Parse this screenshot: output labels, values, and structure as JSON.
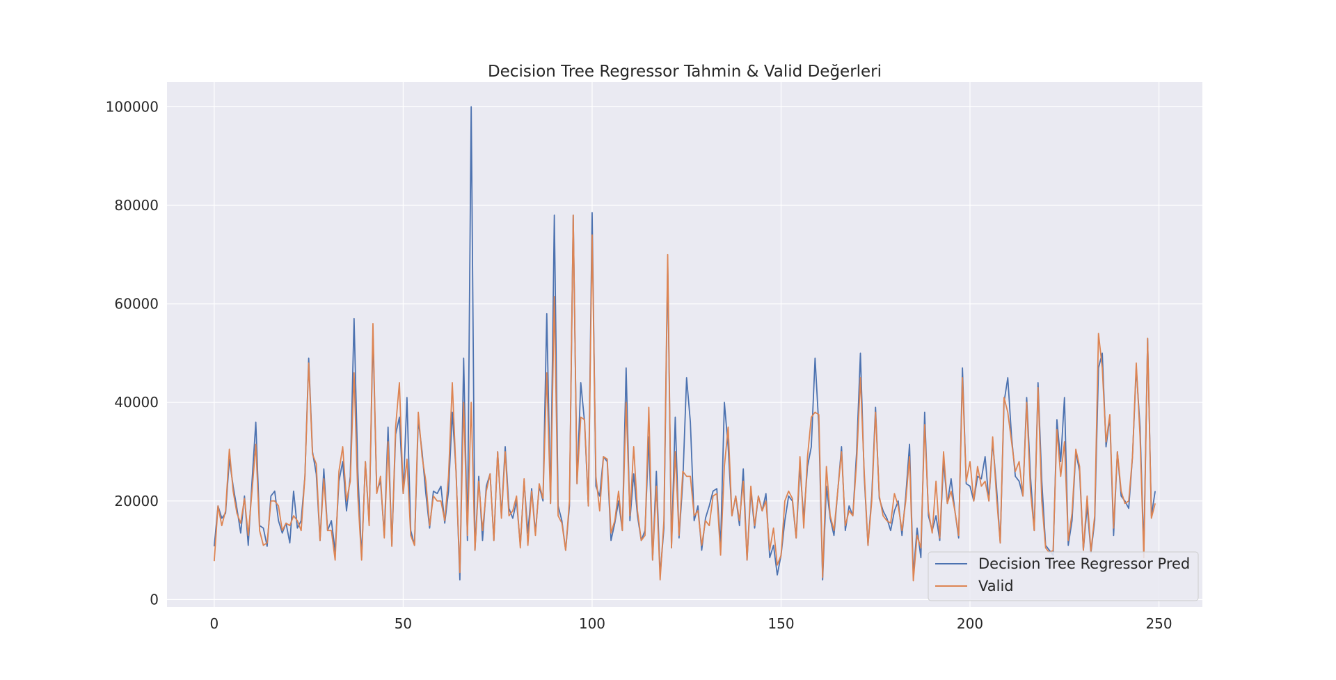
{
  "chart_data": {
    "type": "line",
    "title": "Decision Tree Regressor Tahmin & Valid Değerleri",
    "xlabel": "",
    "ylabel": "",
    "xlim": [
      -12.5,
      261.5
    ],
    "ylim": [
      -1500,
      105000
    ],
    "xticks": [
      0,
      50,
      100,
      150,
      200,
      250
    ],
    "yticks": [
      0,
      20000,
      40000,
      60000,
      80000,
      100000
    ],
    "grid": true,
    "legend_position": "lower right",
    "colors": {
      "background": "#eaeaf2",
      "grid": "#ffffff",
      "pred": "#4c72b0",
      "valid": "#dd8452"
    },
    "series": [
      {
        "name": "Decision Tree Regressor Pred",
        "values": [
          10800,
          19000,
          16500,
          17500,
          28500,
          23000,
          18500,
          13500,
          21000,
          11000,
          24000,
          36000,
          15000,
          14500,
          10800,
          21000,
          22000,
          16000,
          13500,
          15500,
          11500,
          22000,
          14500,
          16000,
          25000,
          49000,
          30000,
          25500,
          12000,
          26500,
          14000,
          16000,
          9800,
          24000,
          28000,
          18000,
          25000,
          57000,
          26000,
          8500,
          28000,
          15500,
          54000,
          22000,
          24000,
          13000,
          35000,
          11000,
          33500,
          37000,
          21500,
          41000,
          14000,
          11000,
          36500,
          30000,
          21500,
          14500,
          22000,
          21500,
          23000,
          15500,
          22000,
          38000,
          26000,
          4000,
          49000,
          12000,
          100000,
          10000,
          25000,
          12000,
          23000,
          25500,
          12000,
          30000,
          17000,
          31000,
          18500,
          16500,
          20000,
          11000,
          24000,
          13500,
          22500,
          13500,
          23000,
          20000,
          58000,
          19500,
          78000,
          19000,
          16000,
          10000,
          19000,
          78000,
          23500,
          44000,
          36000,
          19000,
          78500,
          23000,
          21000,
          29000,
          28000,
          12000,
          15500,
          20000,
          14000,
          47000,
          16000,
          25500,
          17000,
          12000,
          14000,
          33000,
          8000,
          26000,
          5000,
          14500,
          68000,
          10500,
          37000,
          12500,
          24000,
          45000,
          36000,
          16000,
          19000,
          10000,
          16500,
          19000,
          22000,
          22500,
          11000,
          40000,
          31000,
          17000,
          21000,
          15000,
          26500,
          8000,
          22000,
          14500,
          21000,
          18000,
          21500,
          8500,
          11000,
          5000,
          9000,
          16000,
          21000,
          20000,
          12500,
          27000,
          16500,
          27000,
          31000,
          49000,
          35000,
          4000,
          23000,
          16500,
          13000,
          22000,
          31000,
          14000,
          19000,
          17000,
          30000,
          50000,
          25000,
          11000,
          21000,
          39000,
          20500,
          18000,
          16500,
          14000,
          18000,
          20000,
          13000,
          21000,
          31500,
          5000,
          14500,
          8500,
          38000,
          17000,
          14000,
          17000,
          12000,
          28000,
          19500,
          24500,
          18000,
          12500,
          47000,
          23500,
          23000,
          20000,
          25000,
          24500,
          29000,
          20000,
          32000,
          23000,
          11500,
          40000,
          45000,
          33000,
          25000,
          24000,
          21000,
          41000,
          25000,
          14000,
          44000,
          24000,
          11000,
          10000,
          9000,
          36500,
          28000,
          41000,
          11000,
          16000,
          30000,
          26000,
          10000,
          19000,
          9500,
          16000,
          47000,
          50000,
          31000,
          37000,
          13000,
          30000,
          21000,
          20000,
          18500,
          29000,
          47000,
          35000,
          10000,
          53000,
          17000,
          22000
        ]
      },
      {
        "name": "Valid",
        "values": [
          7800,
          19000,
          15000,
          18000,
          30500,
          22000,
          17500,
          15500,
          20500,
          13000,
          22000,
          31500,
          14000,
          11000,
          11500,
          20000,
          20000,
          19000,
          14000,
          15500,
          15000,
          17000,
          16000,
          14000,
          25000,
          48000,
          29500,
          27500,
          12000,
          24500,
          14000,
          14000,
          8000,
          26000,
          31000,
          20000,
          24000,
          46000,
          21000,
          8000,
          28000,
          15000,
          56000,
          21500,
          25000,
          12500,
          32000,
          10800,
          35000,
          44000,
          21500,
          28500,
          13000,
          11000,
          38000,
          29000,
          24000,
          15000,
          21000,
          20000,
          20000,
          16000,
          25000,
          44000,
          25500,
          5500,
          40000,
          13000,
          40000,
          10000,
          24000,
          14000,
          22000,
          25500,
          12000,
          30000,
          16500,
          30000,
          17000,
          18000,
          21000,
          10500,
          24500,
          11000,
          22000,
          13000,
          23500,
          20500,
          46000,
          19500,
          61500,
          17000,
          15500,
          10000,
          20000,
          78000,
          23500,
          37000,
          36500,
          19000,
          74000,
          25000,
          18000,
          29000,
          28500,
          13500,
          16000,
          22000,
          14000,
          40000,
          17000,
          31000,
          18000,
          12000,
          13000,
          39000,
          8000,
          23000,
          4000,
          16000,
          70000,
          10500,
          30000,
          13000,
          26000,
          25000,
          25000,
          17000,
          18000,
          11000,
          16000,
          15000,
          21000,
          21500,
          9000,
          27000,
          35000,
          17000,
          21000,
          16000,
          24000,
          8000,
          23000,
          15000,
          21000,
          18000,
          20000,
          10000,
          14500,
          7000,
          9000,
          20000,
          22000,
          20500,
          12500,
          29000,
          14500,
          29000,
          37000,
          38000,
          37500,
          4500,
          27000,
          17000,
          14000,
          22000,
          30000,
          15000,
          18000,
          17000,
          28000,
          45000,
          26000,
          11000,
          20000,
          38000,
          21000,
          17000,
          16000,
          15500,
          21500,
          19000,
          14000,
          20000,
          29000,
          3800,
          13000,
          10500,
          35500,
          18000,
          13500,
          24000,
          12500,
          30000,
          19500,
          22000,
          18000,
          13000,
          45000,
          24000,
          28000,
          20000,
          27000,
          23000,
          24000,
          20000,
          33000,
          21000,
          11500,
          41000,
          38000,
          32000,
          26000,
          28000,
          21000,
          40000,
          22000,
          14000,
          43000,
          20000,
          10500,
          9500,
          10000,
          34500,
          25000,
          32000,
          12000,
          17500,
          30500,
          27000,
          10000,
          21000,
          9800,
          17000,
          54000,
          47000,
          32000,
          37500,
          14500,
          30000,
          22000,
          19500,
          20000,
          29000,
          48000,
          33000,
          8500,
          53000,
          16500,
          19500
        ]
      }
    ]
  }
}
